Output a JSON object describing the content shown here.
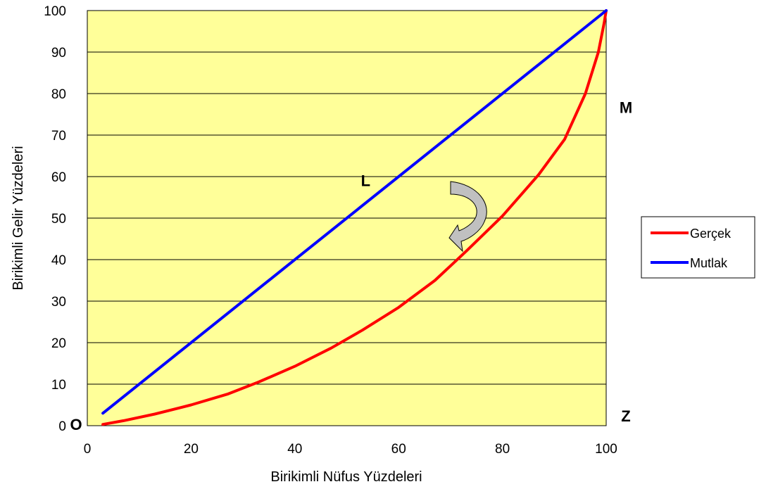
{
  "chart_data": {
    "type": "line",
    "title": "",
    "xlabel": "Birikimli Nüfus Yüzdeleri",
    "ylabel": "Birikimli Gelir Yüzdeleri",
    "xlim": [
      0,
      100
    ],
    "ylim": [
      0,
      100
    ],
    "x_ticks": [
      0,
      20,
      40,
      60,
      80,
      100
    ],
    "y_ticks": [
      0,
      10,
      20,
      30,
      40,
      50,
      60,
      70,
      80,
      90,
      100
    ],
    "grid": "horizontal",
    "plot_background": "#FFFF99",
    "legend_position": "right",
    "series": [
      {
        "name": "Gerçek",
        "color": "#FF0000",
        "points": [
          [
            3,
            0.3
          ],
          [
            7,
            1.2
          ],
          [
            13,
            2.8
          ],
          [
            20,
            5
          ],
          [
            27,
            7.6
          ],
          [
            33,
            10.5
          ],
          [
            40,
            14.3
          ],
          [
            47,
            18.7
          ],
          [
            53,
            23
          ],
          [
            60,
            28.5
          ],
          [
            67,
            35
          ],
          [
            73,
            42
          ],
          [
            80,
            50.5
          ],
          [
            87,
            60.5
          ],
          [
            92,
            69
          ],
          [
            96,
            80
          ],
          [
            98.5,
            90
          ],
          [
            99.6,
            97
          ],
          [
            100,
            100
          ]
        ]
      },
      {
        "name": "Mutlak",
        "color": "#0000FF",
        "points": [
          [
            3,
            3
          ],
          [
            100,
            100
          ]
        ]
      }
    ],
    "annotations": [
      {
        "text": "O",
        "x": 0,
        "y": 0
      },
      {
        "text": "L",
        "x": 55,
        "y": 55
      },
      {
        "text": "M",
        "x": 100,
        "y": 75
      },
      {
        "text": "Z",
        "x": 100,
        "y": 0
      }
    ]
  }
}
